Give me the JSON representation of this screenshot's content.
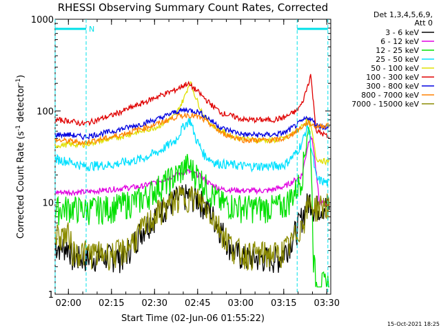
{
  "chart_data": {
    "type": "line",
    "title": "RHESSI Observing Summary Count Rates, Corrected",
    "ylabel_parts": [
      "Corrected Count Rate (s",
      "-1",
      " detector",
      "-1",
      ")"
    ],
    "xlabel": "Start Time (02-Jun-06 01:55:22)",
    "y_scale": "log",
    "ylim": [
      1,
      1000
    ],
    "y_ticks": [
      1,
      10,
      100,
      1000
    ],
    "y_tick_labels": [
      "1",
      "10",
      "100",
      "1000"
    ],
    "xlim": [
      0,
      96
    ],
    "x_ticks": [
      4.63,
      19.63,
      34.63,
      49.63,
      64.63,
      79.63,
      94.63
    ],
    "x_tick_labels": [
      "02:00",
      "02:15",
      "02:30",
      "02:45",
      "03:00",
      "03:15",
      "03:30"
    ],
    "legend_header": [
      "Det 1,3,4,5,6,9,",
      "Att 0"
    ],
    "footer_date": "15-Oct-2021 18:25",
    "flags": [
      {
        "label": "N",
        "color": "#00e0e8",
        "intervals": [
          [
            0,
            10.8
          ],
          [
            84.3,
            95
          ]
        ]
      }
    ],
    "series": [
      {
        "name": "3 - 6 keV",
        "color": "#000000",
        "points": [
          [
            0,
            3.4
          ],
          [
            5,
            3.3
          ],
          [
            6,
            2.5
          ],
          [
            8,
            2.5
          ],
          [
            15,
            2.6
          ],
          [
            20,
            2.6
          ],
          [
            24,
            2.6
          ],
          [
            30,
            5
          ],
          [
            36,
            8
          ],
          [
            42,
            11
          ],
          [
            46,
            12
          ],
          [
            50,
            11
          ],
          [
            54,
            8
          ],
          [
            58,
            5
          ],
          [
            62,
            3
          ],
          [
            66,
            2.5
          ],
          [
            72,
            2.5
          ],
          [
            78,
            2.5
          ],
          [
            80,
            3.0
          ],
          [
            84,
            5
          ],
          [
            88,
            10
          ],
          [
            89,
            11
          ],
          [
            90,
            9
          ],
          [
            94,
            9.2
          ],
          [
            96,
            9.2
          ]
        ]
      },
      {
        "name": "6 - 12 keV",
        "color": "#e000e0",
        "points": [
          [
            0,
            13
          ],
          [
            5,
            13
          ],
          [
            10,
            13
          ],
          [
            20,
            14
          ],
          [
            30,
            15
          ],
          [
            36,
            17
          ],
          [
            42,
            20
          ],
          [
            46,
            22
          ],
          [
            50,
            20
          ],
          [
            54,
            16
          ],
          [
            58,
            14
          ],
          [
            66,
            13.5
          ],
          [
            74,
            13.5
          ],
          [
            80,
            15
          ],
          [
            84,
            18
          ],
          [
            86,
            20
          ],
          [
            88,
            42
          ],
          [
            89,
            55
          ],
          [
            90,
            40
          ],
          [
            92,
            10
          ],
          [
            96,
            9.5
          ]
        ]
      },
      {
        "name": "12 - 25 keV",
        "color": "#00e000",
        "points": [
          [
            0,
            8.5
          ],
          [
            5,
            9
          ],
          [
            10,
            8.5
          ],
          [
            20,
            9
          ],
          [
            30,
            11
          ],
          [
            36,
            15
          ],
          [
            42,
            20
          ],
          [
            46,
            26
          ],
          [
            50,
            20
          ],
          [
            54,
            13
          ],
          [
            58,
            10
          ],
          [
            66,
            9
          ],
          [
            76,
            9
          ],
          [
            80,
            9.5
          ],
          [
            84,
            14
          ],
          [
            86,
            20
          ],
          [
            88,
            65
          ],
          [
            89,
            50
          ],
          [
            90,
            2.5
          ],
          [
            91,
            1.3
          ],
          [
            96,
            1.3
          ]
        ]
      },
      {
        "name": "25 - 50 keV",
        "color": "#00e0ff",
        "points": [
          [
            0,
            30
          ],
          [
            5,
            28
          ],
          [
            10,
            25
          ],
          [
            20,
            26
          ],
          [
            30,
            30
          ],
          [
            36,
            36
          ],
          [
            42,
            48
          ],
          [
            45,
            70
          ],
          [
            47,
            80
          ],
          [
            49,
            50
          ],
          [
            52,
            33
          ],
          [
            56,
            27
          ],
          [
            66,
            25
          ],
          [
            76,
            25
          ],
          [
            80,
            26
          ],
          [
            84,
            35
          ],
          [
            86,
            45
          ],
          [
            88,
            70
          ],
          [
            89,
            45
          ],
          [
            91,
            18
          ],
          [
            96,
            16
          ]
        ]
      },
      {
        "name": "50 - 100 keV",
        "color": "#e0e000",
        "points": [
          [
            0,
            42
          ],
          [
            5,
            43
          ],
          [
            10,
            43
          ],
          [
            20,
            50
          ],
          [
            30,
            60
          ],
          [
            36,
            68
          ],
          [
            42,
            90
          ],
          [
            45,
            140
          ],
          [
            47,
            210
          ],
          [
            49,
            140
          ],
          [
            52,
            85
          ],
          [
            56,
            65
          ],
          [
            62,
            52
          ],
          [
            70,
            48
          ],
          [
            76,
            48
          ],
          [
            80,
            50
          ],
          [
            84,
            60
          ],
          [
            88,
            80
          ],
          [
            89,
            70
          ],
          [
            91,
            30
          ],
          [
            96,
            27
          ]
        ]
      },
      {
        "name": "100 - 300 keV",
        "color": "#e00000",
        "points": [
          [
            0,
            80
          ],
          [
            5,
            78
          ],
          [
            10,
            72
          ],
          [
            20,
            90
          ],
          [
            30,
            120
          ],
          [
            36,
            145
          ],
          [
            42,
            170
          ],
          [
            46,
            200
          ],
          [
            49,
            170
          ],
          [
            54,
            120
          ],
          [
            58,
            95
          ],
          [
            66,
            80
          ],
          [
            76,
            80
          ],
          [
            80,
            85
          ],
          [
            84,
            100
          ],
          [
            86,
            120
          ],
          [
            88,
            190
          ],
          [
            89,
            250
          ],
          [
            90,
            120
          ],
          [
            91,
            60
          ],
          [
            94,
            55
          ],
          [
            96,
            48
          ]
        ]
      },
      {
        "name": "300 - 800 keV",
        "color": "#0000e0",
        "points": [
          [
            0,
            55
          ],
          [
            5,
            55
          ],
          [
            10,
            52
          ],
          [
            20,
            60
          ],
          [
            30,
            72
          ],
          [
            36,
            82
          ],
          [
            42,
            98
          ],
          [
            46,
            103
          ],
          [
            50,
            98
          ],
          [
            54,
            80
          ],
          [
            58,
            65
          ],
          [
            66,
            55
          ],
          [
            76,
            55
          ],
          [
            80,
            58
          ],
          [
            84,
            70
          ],
          [
            88,
            85
          ],
          [
            89,
            82
          ],
          [
            91,
            70
          ],
          [
            96,
            65
          ]
        ]
      },
      {
        "name": "800 - 7000 keV",
        "color": "#ff8000",
        "points": [
          [
            0,
            48
          ],
          [
            5,
            47
          ],
          [
            10,
            45
          ],
          [
            20,
            52
          ],
          [
            30,
            64
          ],
          [
            36,
            73
          ],
          [
            42,
            86
          ],
          [
            46,
            91
          ],
          [
            50,
            86
          ],
          [
            54,
            72
          ],
          [
            58,
            57
          ],
          [
            66,
            48
          ],
          [
            76,
            48
          ],
          [
            80,
            50
          ],
          [
            84,
            60
          ],
          [
            88,
            75
          ],
          [
            89,
            72
          ],
          [
            91,
            68
          ],
          [
            96,
            70
          ]
        ]
      },
      {
        "name": "7000 - 15000 keV",
        "color": "#8c8c00",
        "points": [
          [
            0,
            4.5
          ],
          [
            5,
            4.5
          ],
          [
            6,
            3.0
          ],
          [
            15,
            2.8
          ],
          [
            20,
            2.8
          ],
          [
            24,
            3.0
          ],
          [
            30,
            5
          ],
          [
            36,
            8
          ],
          [
            42,
            11
          ],
          [
            46,
            12
          ],
          [
            50,
            11
          ],
          [
            54,
            8
          ],
          [
            58,
            5
          ],
          [
            62,
            3.2
          ],
          [
            66,
            2.8
          ],
          [
            72,
            2.8
          ],
          [
            78,
            2.8
          ],
          [
            82,
            3.5
          ],
          [
            86,
            6
          ],
          [
            88,
            9
          ],
          [
            89,
            10
          ],
          [
            90,
            9
          ],
          [
            94,
            9.5
          ],
          [
            96,
            9.5
          ]
        ]
      }
    ]
  }
}
